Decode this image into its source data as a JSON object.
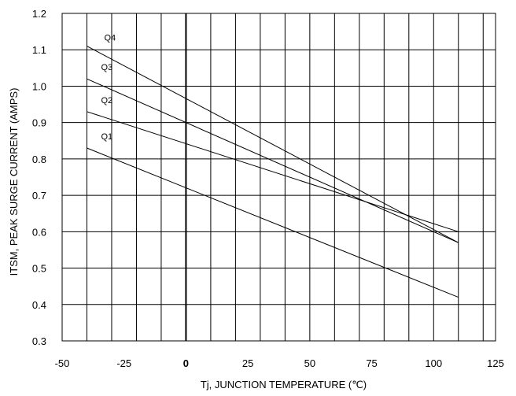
{
  "chart_data": {
    "type": "line",
    "title": "",
    "xlabel": "Tj, JUNCTION TEMPERATURE (℃)",
    "ylabel": "ITSM, PEAK SURGE CURRENT (AMPS)",
    "xlim": [
      -50,
      125
    ],
    "ylim": [
      0.3,
      1.2
    ],
    "xticks": [
      -50,
      -25,
      0,
      25,
      50,
      75,
      100,
      125
    ],
    "xtick_labels": [
      "-50",
      "-25",
      "0",
      "25",
      "50",
      "75",
      "100",
      "125"
    ],
    "yticks": [
      0.3,
      0.4,
      0.5,
      0.6,
      0.7,
      0.8,
      0.9,
      1.0,
      1.1,
      1.2
    ],
    "ytick_labels": [
      "0.3",
      "0.4",
      "0.5",
      "0.6",
      "0.7",
      "0.8",
      "0.9",
      "1.0",
      "1.1",
      "1.2"
    ],
    "grid": true,
    "emphasized_vertical_line_x": 0,
    "series": [
      {
        "name": "Q1",
        "x": [
          -40,
          110
        ],
        "values": [
          0.83,
          0.42
        ]
      },
      {
        "name": "Q2",
        "x": [
          -40,
          110
        ],
        "values": [
          0.93,
          0.6
        ]
      },
      {
        "name": "Q3",
        "x": [
          -40,
          110
        ],
        "values": [
          1.02,
          0.57
        ]
      },
      {
        "name": "Q4",
        "x": [
          -40,
          110
        ],
        "values": [
          1.11,
          0.57
        ]
      }
    ]
  }
}
